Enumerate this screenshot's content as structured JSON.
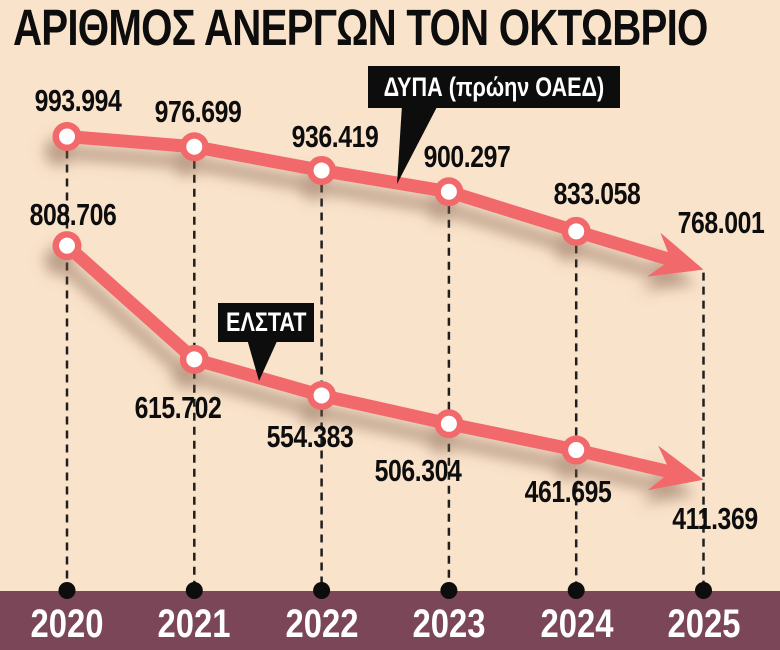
{
  "chart_data": {
    "type": "line",
    "title": "ΑΡΙΘΜΟΣ ΑΝΕΡΓΩΝ ΤΟΝ ΟΚΤΩΒΡΙΟ",
    "categories": [
      "2020",
      "2021",
      "2022",
      "2023",
      "2024",
      "2025"
    ],
    "series": [
      {
        "name": "ΔΥΠΑ (πρώην ΟΑΕΔ)",
        "values": [
          993994,
          976699,
          936419,
          900297,
          833058,
          768001
        ],
        "labels": [
          "993.994",
          "976.699",
          "936.419",
          "900.297",
          "833.058",
          "768.001"
        ]
      },
      {
        "name": "ΕΛΣΤΑΤ",
        "values": [
          808706,
          615702,
          554383,
          506304,
          461695,
          411369
        ],
        "labels": [
          "808.706",
          "615.702",
          "554.383",
          "506.304",
          "461.695",
          "411.369"
        ]
      }
    ],
    "grid": "vertical-dashed",
    "legend_position": "inline-callouts-on-lines",
    "line_ends": "arrowhead-right",
    "xlabel": "",
    "ylabel": ""
  },
  "colors": {
    "background": "#fae3cb",
    "line": "#f1696b",
    "marker_fill": "#ffffff",
    "label_text": "#0d0d0d",
    "callout_bg": "#0d0d0d",
    "callout_text": "#ffffff",
    "axis_bar": "#7b4758",
    "axis_text": "#ffffff",
    "grid_dash": "#1f1f1f",
    "shadow": "#7d5a44"
  }
}
